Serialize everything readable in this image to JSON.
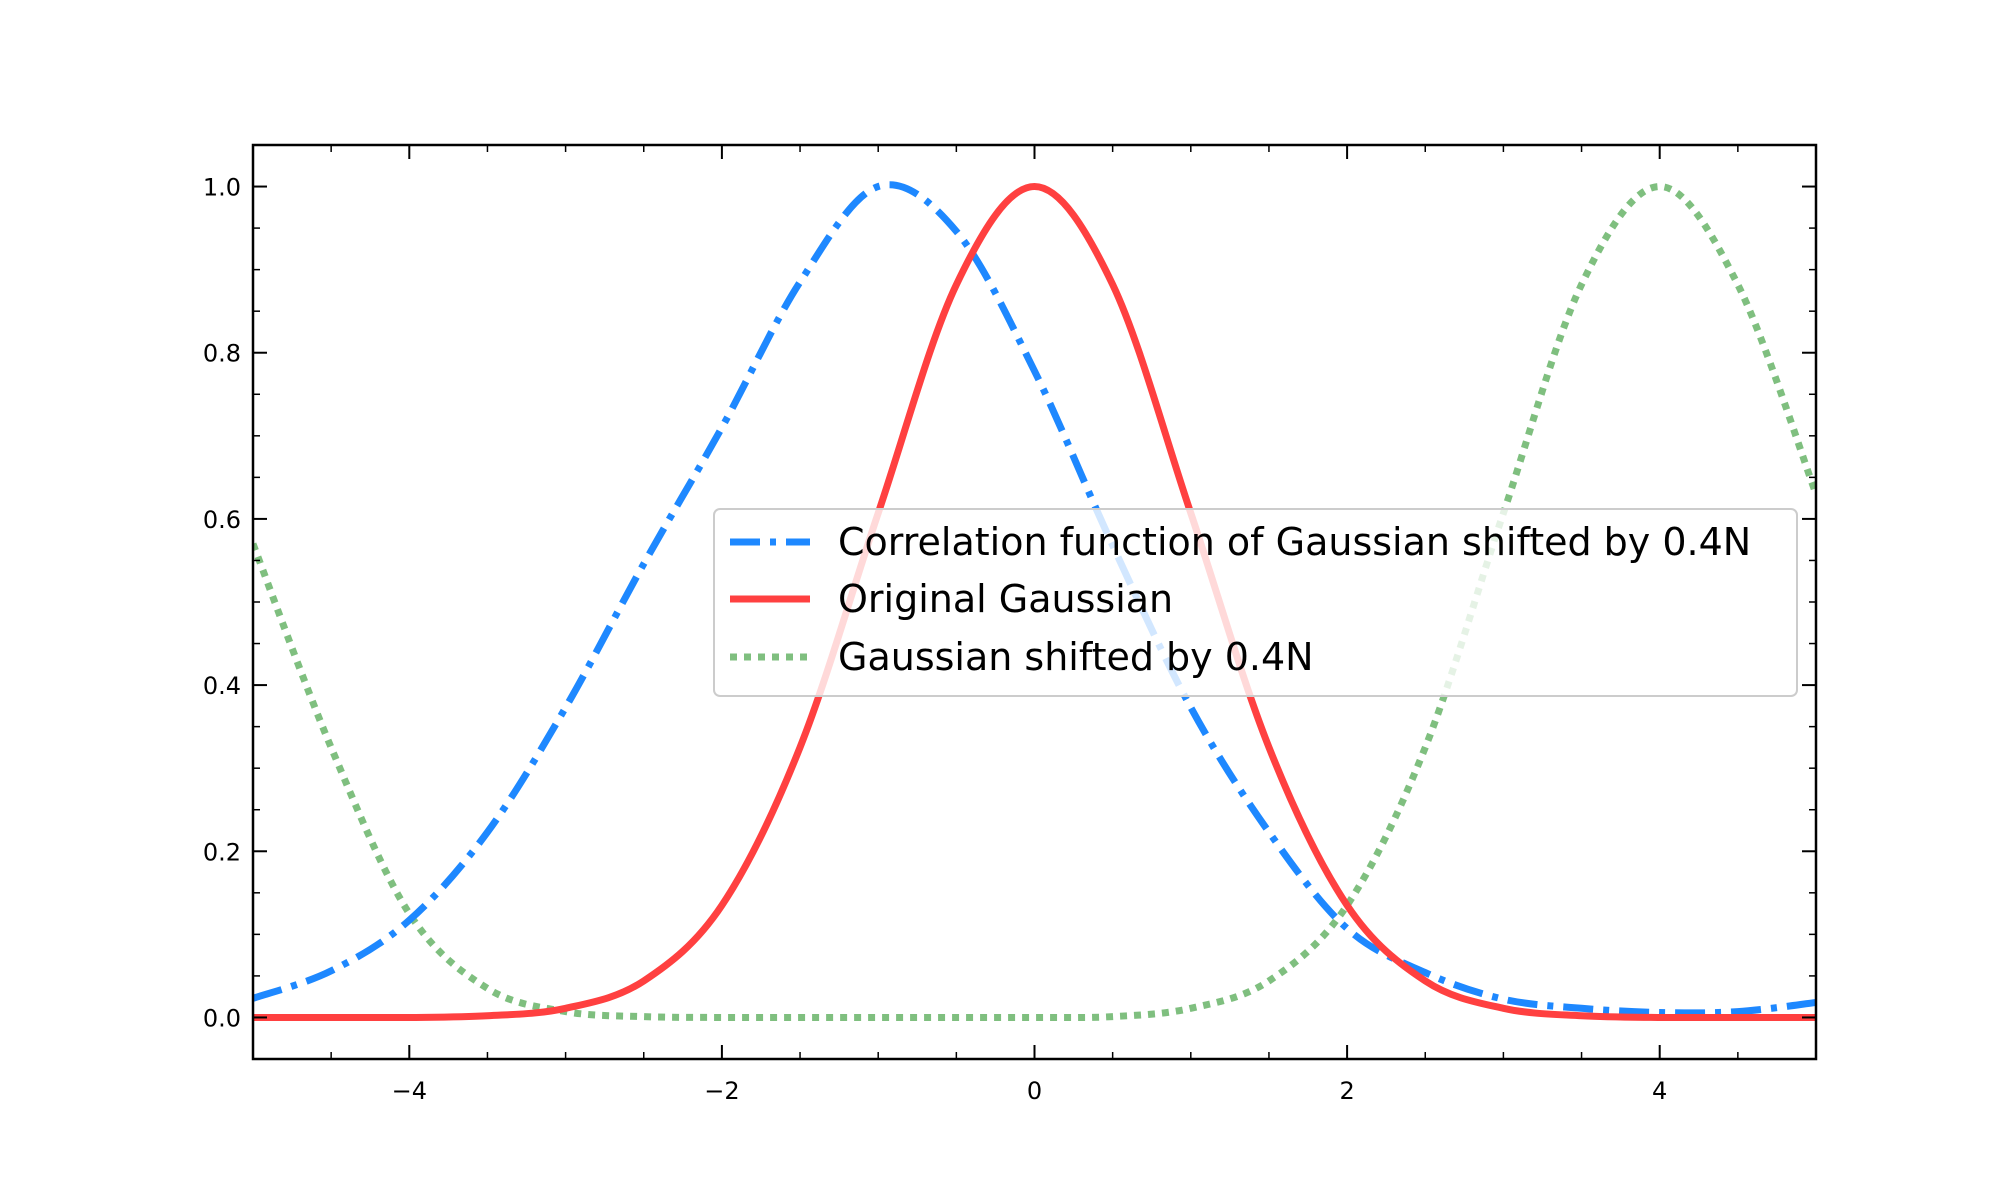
{
  "chart_data": {
    "type": "line",
    "xlim": [
      -5,
      5
    ],
    "ylim": [
      -0.05,
      1.05
    ],
    "xticks": [
      -4,
      -2,
      0,
      2,
      4
    ],
    "xtick_labels": [
      "−4",
      "−2",
      "0",
      "2",
      "4"
    ],
    "yticks": [
      0.0,
      0.2,
      0.4,
      0.6,
      0.8,
      1.0
    ],
    "ytick_labels": [
      "0.0",
      "0.2",
      "0.4",
      "0.6",
      "0.8",
      "1.0"
    ],
    "grid": false,
    "legend_position": "center-right",
    "series": [
      {
        "name": "Correlation function of Gaussian shifted by 0.4N",
        "color": "#1E88FF",
        "style": "dashdot",
        "x": [
          -5,
          -4.5,
          -4,
          -3.5,
          -3,
          -2.5,
          -2,
          -1.5,
          -1,
          -0.5,
          0,
          0.5,
          1,
          1.5,
          2,
          2.5,
          3,
          3.5,
          4,
          4.5,
          5
        ],
        "y": [
          0.023,
          0.056,
          0.117,
          0.223,
          0.373,
          0.546,
          0.71,
          0.885,
          1.0,
          0.946,
          0.778,
          0.568,
          0.373,
          0.223,
          0.107,
          0.054,
          0.022,
          0.011,
          0.006,
          0.007,
          0.018
        ]
      },
      {
        "name": "Original Gaussian",
        "color": "#FF4040",
        "style": "solid",
        "x": [
          -5,
          -4.5,
          -4,
          -3.5,
          -3,
          -2.5,
          -2,
          -1.5,
          -1,
          -0.5,
          0,
          0.5,
          1,
          1.5,
          2,
          2.5,
          3,
          3.5,
          4,
          4.5,
          5
        ],
        "y": [
          0.0,
          0.0,
          0.0,
          0.002,
          0.011,
          0.044,
          0.135,
          0.325,
          0.607,
          0.882,
          1.0,
          0.882,
          0.607,
          0.325,
          0.135,
          0.044,
          0.011,
          0.002,
          0.0,
          0.0,
          0.0
        ]
      },
      {
        "name": "Gaussian shifted by 0.4N",
        "color": "#7FBF7F",
        "style": "dotted",
        "x": [
          -5,
          -4.5,
          -4,
          -3.5,
          -3,
          -2.5,
          -2,
          -1.5,
          -1,
          -0.5,
          0,
          0.5,
          1,
          1.5,
          2,
          2.5,
          3,
          3.5,
          4,
          4.5,
          5
        ],
        "y": [
          0.57,
          0.325,
          0.125,
          0.035,
          0.007,
          0.001,
          0.0,
          0.0,
          0.0,
          0.0,
          0.0,
          0.001,
          0.011,
          0.044,
          0.135,
          0.325,
          0.607,
          0.882,
          1.0,
          0.882,
          0.63
        ]
      }
    ]
  }
}
